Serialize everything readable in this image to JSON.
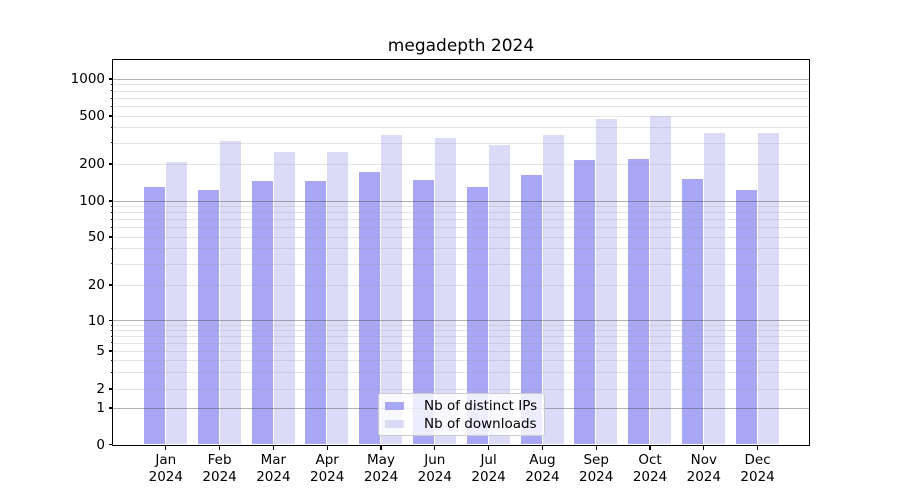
{
  "title": "megadepth 2024",
  "legend": {
    "items": [
      {
        "label": "Nb of distinct IPs",
        "color": "#a7a7f5"
      },
      {
        "label": "Nb of downloads",
        "color": "#dbdbf8"
      }
    ]
  },
  "y_axis": {
    "tick_labels": [
      "0",
      "1",
      "2",
      "5",
      "10",
      "20",
      "50",
      "100",
      "200",
      "500",
      "1000"
    ]
  },
  "x_axis": {
    "months": [
      "Jan",
      "Feb",
      "Mar",
      "Apr",
      "May",
      "Jun",
      "Jul",
      "Aug",
      "Sep",
      "Oct",
      "Nov",
      "Dec"
    ],
    "year": "2024"
  },
  "colors": {
    "bar_ips": "#a7a7f5",
    "bar_downloads": "#dbdbf8",
    "spine": "#000000",
    "legend_border": "#cccccc"
  },
  "chart_data": {
    "type": "bar",
    "title": "megadepth 2024",
    "categories": [
      "Jan 2024",
      "Feb 2024",
      "Mar 2024",
      "Apr 2024",
      "May 2024",
      "Jun 2024",
      "Jul 2024",
      "Aug 2024",
      "Sep 2024",
      "Oct 2024",
      "Nov 2024",
      "Dec 2024"
    ],
    "series": [
      {
        "name": "Nb of distinct IPs",
        "values": [
          130,
          122,
          146,
          146,
          170,
          149,
          130,
          161,
          213,
          220,
          151,
          123
        ]
      },
      {
        "name": "Nb of downloads",
        "values": [
          207,
          310,
          251,
          252,
          348,
          328,
          288,
          347,
          470,
          495,
          362,
          360
        ]
      }
    ],
    "xlabel": "",
    "ylabel": "",
    "yscale": "symlog",
    "y_ticks": [
      0,
      1,
      2,
      5,
      10,
      20,
      50,
      100,
      200,
      500,
      1000
    ],
    "ylim": [
      0,
      1600
    ],
    "grid": true,
    "legend_position": "lower center"
  }
}
